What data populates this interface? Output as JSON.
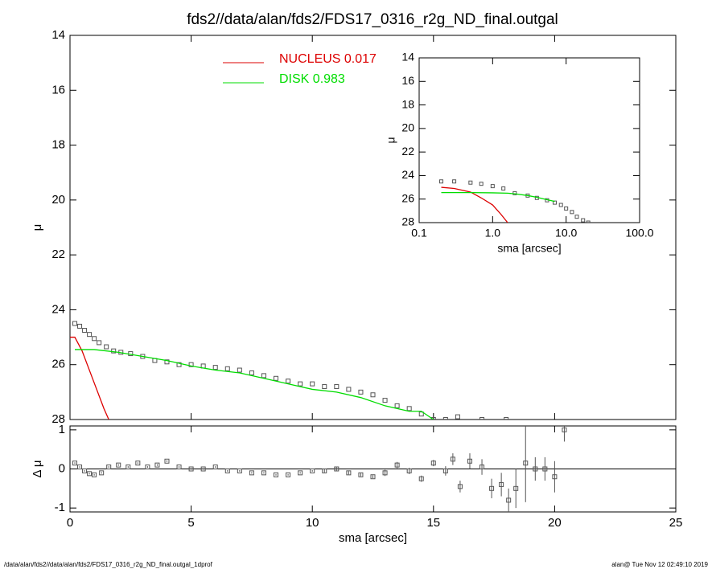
{
  "title": "fds2//data/alan/fds2/FDS17_0316_r2g_ND_final.outgal",
  "footer": {
    "left": "/data/alan/fds2//data/alan/fds2/FDS17_0316_r2g_ND_final.outgal_1dprof",
    "right": "alan@  Tue Nov 12 02:49:10 2019"
  },
  "chart_data": [
    {
      "type": "scatter",
      "ylabel": "μ",
      "xlim": [
        0,
        25
      ],
      "xticks": [
        0,
        5,
        10,
        15,
        20,
        25
      ],
      "ylim": [
        28,
        14
      ],
      "yticks": [
        14,
        16,
        18,
        20,
        22,
        24,
        26,
        28
      ],
      "series": [
        {
          "style": "points",
          "color": "#555555",
          "x": [
            0.2,
            0.4,
            0.6,
            0.8,
            1.0,
            1.2,
            1.5,
            1.8,
            2.1,
            2.5,
            3.0,
            3.5,
            4.0,
            4.5,
            5.0,
            5.5,
            6.0,
            6.5,
            7.0,
            7.5,
            8.0,
            8.5,
            9.0,
            9.5,
            10.0,
            10.5,
            11.0,
            11.5,
            12.0,
            12.5,
            13.0,
            13.5,
            14.0,
            14.5,
            15.0,
            15.5,
            16.0,
            17.0,
            18.0
          ],
          "values": [
            24.5,
            24.6,
            24.75,
            24.9,
            25.05,
            25.2,
            25.35,
            25.5,
            25.55,
            25.6,
            25.7,
            25.85,
            25.9,
            26.0,
            26.0,
            26.05,
            26.1,
            26.15,
            26.2,
            26.3,
            26.4,
            26.5,
            26.6,
            26.7,
            26.7,
            26.8,
            26.8,
            26.9,
            27.0,
            27.1,
            27.3,
            27.5,
            27.6,
            27.8,
            28.0,
            28.0,
            27.9,
            28.0,
            28.0
          ]
        },
        {
          "name": "NUCLEUS  0.017",
          "style": "line",
          "color": "#dd0000",
          "x": [
            0,
            0.2,
            0.5,
            0.8,
            1.1,
            1.4,
            1.6
          ],
          "values": [
            25.0,
            25.0,
            25.5,
            26.2,
            26.9,
            27.6,
            28.0
          ]
        },
        {
          "name": "DISK  0.983",
          "style": "line",
          "color": "#00dd00",
          "x": [
            0.2,
            1,
            2,
            3,
            4,
            5,
            6,
            7,
            8,
            9,
            10,
            11,
            12,
            13,
            14,
            14.5,
            15
          ],
          "values": [
            25.45,
            25.45,
            25.55,
            25.7,
            25.85,
            26.05,
            26.2,
            26.3,
            26.5,
            26.7,
            26.9,
            27.0,
            27.2,
            27.5,
            27.7,
            27.7,
            28.0
          ]
        }
      ]
    },
    {
      "type": "scatter",
      "xlabel": "sma [arcsec]",
      "ylabel": "Δ μ",
      "xlim": [
        0,
        25
      ],
      "xticks": [
        0,
        5,
        10,
        15,
        20,
        25
      ],
      "ylim": [
        -1.1,
        1.1
      ],
      "yticks": [
        -1,
        0,
        1
      ],
      "zero_line": true,
      "series": [
        {
          "style": "points",
          "color": "#555555",
          "x": [
            0.2,
            0.4,
            0.6,
            0.8,
            1.0,
            1.3,
            1.6,
            2.0,
            2.4,
            2.8,
            3.2,
            3.6,
            4.0,
            4.5,
            5.0,
            5.5,
            6.0,
            6.5,
            7.0,
            7.5,
            8.0,
            8.5,
            9.0,
            9.5,
            10.0,
            10.5,
            11.0,
            11.5,
            12.0,
            12.5,
            13.0,
            13.5,
            14.0,
            14.5,
            15.0,
            15.5,
            15.8,
            16.1,
            16.5,
            17.0,
            17.4,
            17.8,
            18.1,
            18.4,
            18.8,
            19.2,
            19.6,
            20.0,
            20.4
          ],
          "values": [
            0.15,
            0.05,
            -0.05,
            -0.12,
            -0.15,
            -0.1,
            0.05,
            0.1,
            0.05,
            0.15,
            0.05,
            0.1,
            0.2,
            0.05,
            0.0,
            0.0,
            0.05,
            -0.05,
            -0.05,
            -0.1,
            -0.1,
            -0.15,
            -0.15,
            -0.1,
            -0.05,
            -0.05,
            0.0,
            -0.1,
            -0.15,
            -0.2,
            -0.1,
            0.1,
            -0.05,
            -0.25,
            0.15,
            -0.05,
            0.25,
            -0.45,
            0.2,
            0.05,
            -0.5,
            -0.4,
            -0.8,
            -0.5,
            0.15,
            0.0,
            0.0,
            -0.2,
            1.0
          ],
          "errors": [
            0.02,
            0.02,
            0.02,
            0.02,
            0.02,
            0.02,
            0.02,
            0.02,
            0.02,
            0.02,
            0.02,
            0.02,
            0.02,
            0.02,
            0.02,
            0.02,
            0.02,
            0.02,
            0.02,
            0.02,
            0.02,
            0.02,
            0.02,
            0.02,
            0.02,
            0.04,
            0.04,
            0.04,
            0.04,
            0.04,
            0.08,
            0.08,
            0.08,
            0.08,
            0.08,
            0.12,
            0.15,
            0.15,
            0.2,
            0.2,
            0.25,
            0.3,
            0.3,
            0.5,
            1.0,
            0.3,
            0.3,
            0.4,
            0.3
          ]
        }
      ]
    },
    {
      "type": "scatter",
      "xlabel": "sma [arcsec]",
      "ylabel": "μ",
      "xlog": true,
      "xlim": [
        0.1,
        100
      ],
      "xticks": [
        {
          "value": 0.1,
          "label": "0.1"
        },
        {
          "value": 1,
          "label": "1.0"
        },
        {
          "value": 10,
          "label": "10.0"
        },
        {
          "value": 100,
          "label": "100.0"
        }
      ],
      "ylim": [
        28,
        14
      ],
      "yticks": [
        14,
        16,
        18,
        20,
        22,
        24,
        26,
        28
      ],
      "series": [
        {
          "style": "points",
          "color": "#555555",
          "x": [
            0.2,
            0.3,
            0.5,
            0.7,
            1.0,
            1.4,
            2.0,
            3.0,
            4.0,
            5.5,
            7.0,
            8.5,
            10.0,
            12.0,
            14.0,
            17.0,
            20.0
          ],
          "values": [
            24.5,
            24.5,
            24.6,
            24.7,
            24.9,
            25.1,
            25.5,
            25.7,
            25.9,
            26.1,
            26.3,
            26.5,
            26.8,
            27.1,
            27.5,
            27.8,
            28.0
          ]
        },
        {
          "style": "line",
          "color": "#dd0000",
          "x": [
            0.2,
            0.3,
            0.5,
            0.7,
            1.0,
            1.3,
            1.6
          ],
          "values": [
            25.0,
            25.1,
            25.4,
            25.9,
            26.5,
            27.3,
            28.0
          ]
        },
        {
          "style": "line",
          "color": "#00dd00",
          "x": [
            0.2,
            0.5,
            1.0,
            1.6,
            2.0,
            3.0,
            4.0,
            5.5,
            7.0
          ],
          "values": [
            25.45,
            25.45,
            25.47,
            25.5,
            25.55,
            25.7,
            25.85,
            26.05,
            26.2
          ]
        }
      ]
    }
  ]
}
